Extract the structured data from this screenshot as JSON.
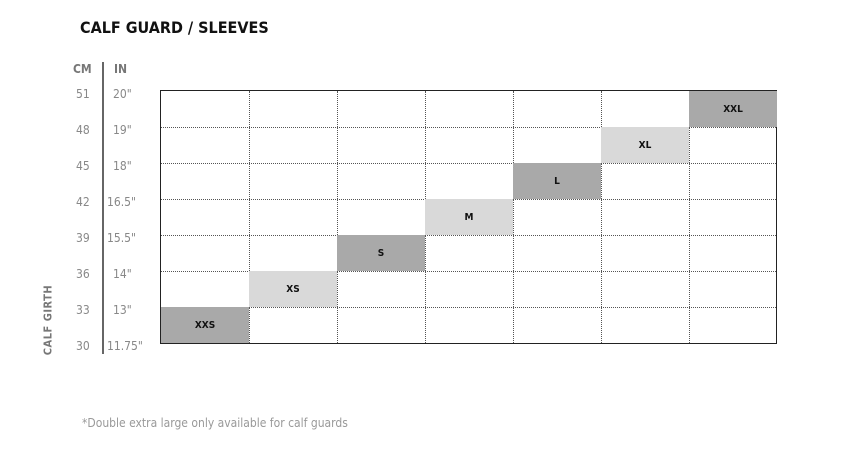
{
  "chart_data": {
    "type": "table",
    "title": "CALF GUARD / SLEEVES",
    "ylabel": "CALF GIRTH",
    "columns": [
      "CM",
      "IN"
    ],
    "ticks_cm": [
      "51",
      "48",
      "45",
      "42",
      "39",
      "36",
      "33",
      "30"
    ],
    "ticks_in": [
      "20\"",
      "19\"",
      "18\"",
      "16.5\"",
      "15.5\"",
      "14\"",
      "13\"",
      "11.75\""
    ],
    "sizes": [
      {
        "label": "XXS",
        "cm_range": [
          30,
          33
        ],
        "in_range": [
          "11.75\"",
          "13\""
        ],
        "color": "#a9a9a9"
      },
      {
        "label": "XS",
        "cm_range": [
          33,
          36
        ],
        "in_range": [
          "13\"",
          "14\""
        ],
        "color": "#d9d9d9"
      },
      {
        "label": "S",
        "cm_range": [
          36,
          39
        ],
        "in_range": [
          "14\"",
          "15.5\""
        ],
        "color": "#a9a9a9"
      },
      {
        "label": "M",
        "cm_range": [
          39,
          42
        ],
        "in_range": [
          "15.5\"",
          "16.5\""
        ],
        "color": "#d9d9d9"
      },
      {
        "label": "L",
        "cm_range": [
          42,
          45
        ],
        "in_range": [
          "16.5\"",
          "18\""
        ],
        "color": "#a9a9a9"
      },
      {
        "label": "XL",
        "cm_range": [
          45,
          48
        ],
        "in_range": [
          "18\"",
          "19\""
        ],
        "color": "#d9d9d9"
      },
      {
        "label": "XXL",
        "cm_range": [
          48,
          51
        ],
        "in_range": [
          "19\"",
          "20\""
        ],
        "color": "#a9a9a9"
      }
    ],
    "grid": true,
    "footnote": "*Double extra large only available for calf guards"
  }
}
